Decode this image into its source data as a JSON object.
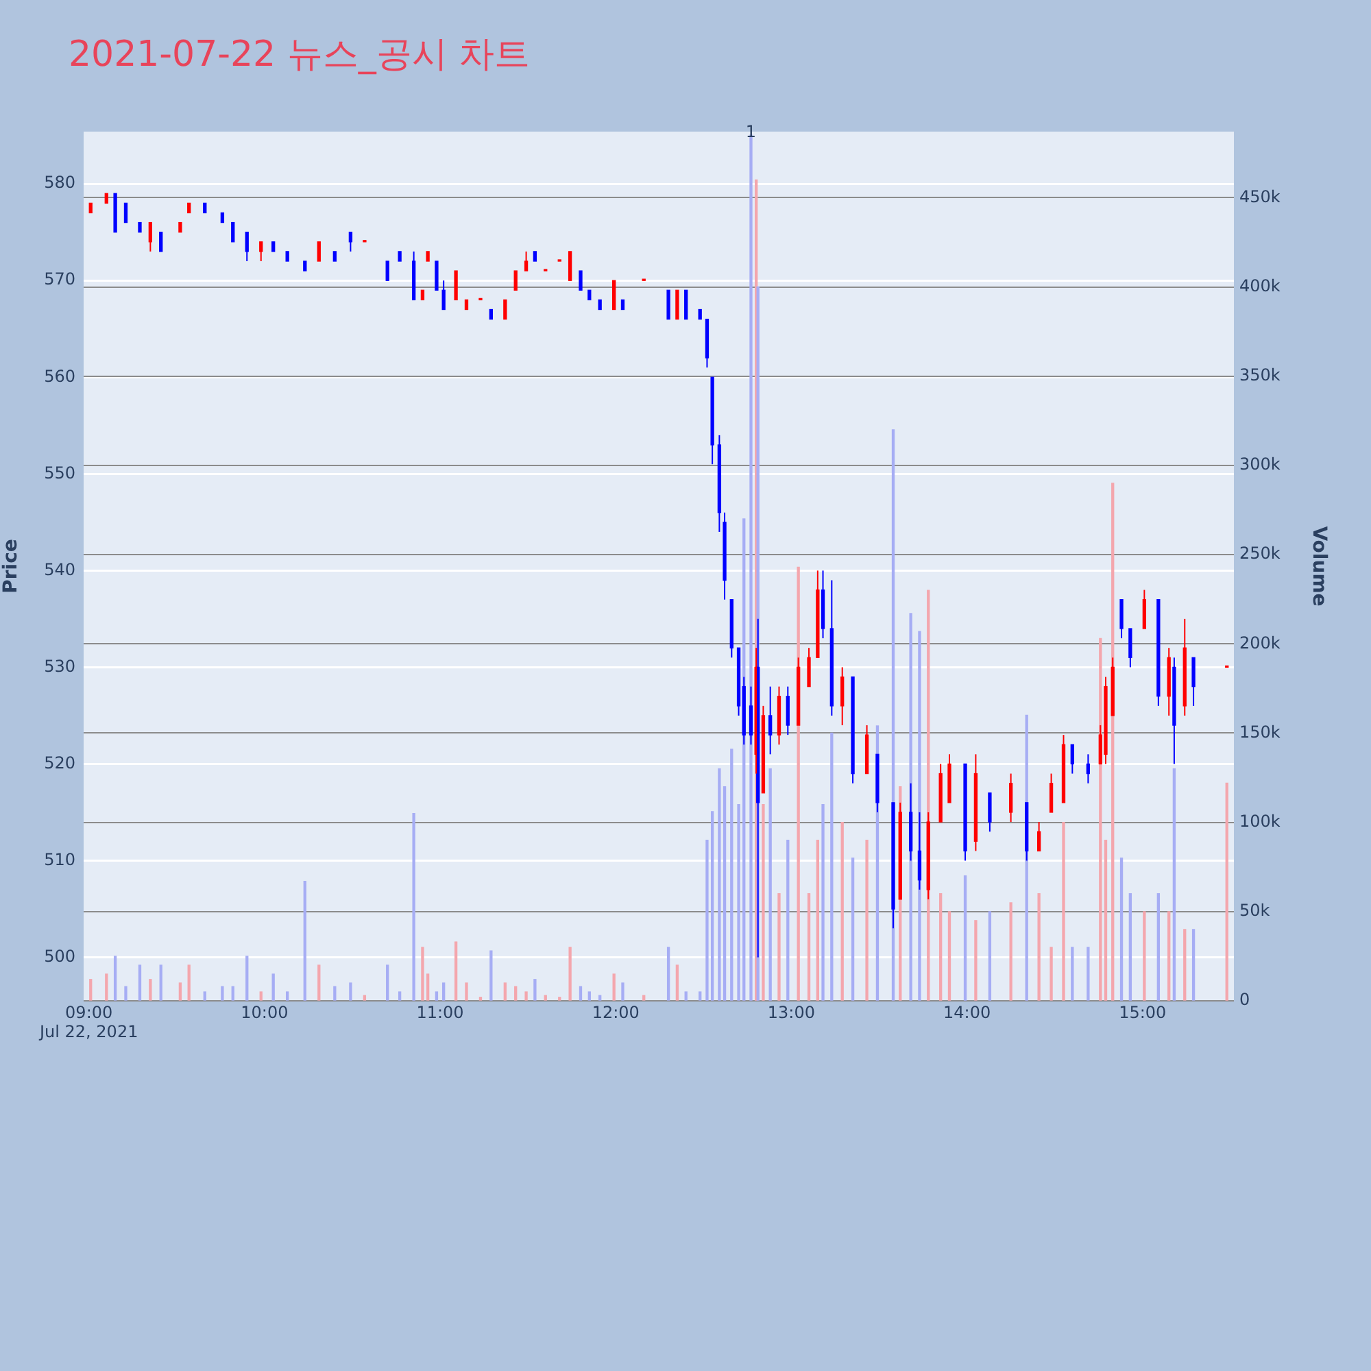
{
  "chart_data": {
    "type": "candlestick",
    "title": "2021-07-22 뉴스_공시 차트",
    "ylabel": "Price",
    "y2label": "Volume",
    "grid": "y",
    "x": [
      9.01,
      9.1,
      9.15,
      9.21,
      9.29,
      9.35,
      9.41,
      9.52,
      9.57,
      9.66,
      9.76,
      9.82,
      9.9,
      9.98,
      10.05,
      10.13,
      10.23,
      10.31,
      10.4,
      10.49,
      10.57,
      10.7,
      10.77,
      10.85,
      10.9,
      10.93,
      10.98,
      11.02,
      11.09,
      11.15,
      11.23,
      11.29,
      11.37,
      11.43,
      11.49,
      11.54,
      11.6,
      11.68,
      11.74,
      11.8,
      11.85,
      11.91,
      11.99,
      12.04,
      12.16,
      12.3,
      12.35,
      12.4,
      12.48,
      12.52,
      12.55,
      12.59,
      12.62,
      12.66,
      12.7,
      12.73,
      12.77,
      12.8,
      12.81,
      12.84,
      12.88,
      12.93,
      12.98,
      13.04,
      13.1,
      13.15,
      13.18,
      13.23,
      13.29,
      13.35,
      13.43,
      13.49,
      13.58,
      13.62,
      13.68,
      13.73,
      13.78,
      13.85,
      13.9,
      13.99,
      14.05,
      14.13,
      14.25,
      14.34,
      14.41,
      14.48,
      14.55,
      14.6,
      14.69,
      14.76,
      14.79,
      14.83,
      14.88,
      14.93,
      15.01,
      15.09,
      15.15,
      15.18,
      15.24,
      15.29,
      15.48
    ],
    "xlim": [
      8.97,
      15.52
    ],
    "xticks": [
      {
        "value": 9,
        "label": "09:00\nJul 22, 2021"
      },
      {
        "value": 10,
        "label": "10:00"
      },
      {
        "value": 11,
        "label": "11:00"
      },
      {
        "value": 12,
        "label": "12:00"
      },
      {
        "value": 13,
        "label": "13:00"
      },
      {
        "value": 14,
        "label": "14:00"
      },
      {
        "value": 15,
        "label": "15:00"
      }
    ],
    "ylim": [
      495.5,
      585.4
    ],
    "yticks": [
      500,
      510,
      520,
      530,
      540,
      550,
      560,
      570,
      580
    ],
    "y2lim": [
      0,
      487000
    ],
    "y2ticks": [
      0,
      {
        "value": 50000,
        "label": "50k"
      },
      {
        "value": 100000,
        "label": "100k"
      },
      {
        "value": 150000,
        "label": "150k"
      },
      {
        "value": 200000,
        "label": "200k"
      },
      {
        "value": 250000,
        "label": "250k"
      },
      {
        "value": 300000,
        "label": "300k"
      },
      {
        "value": 350000,
        "label": "350k"
      },
      {
        "value": 400000,
        "label": "400k"
      },
      {
        "value": 450000,
        "label": "450k"
      }
    ],
    "annotations": [
      {
        "text": "1",
        "x": 12.77
      }
    ],
    "series": [
      {
        "type": "bar",
        "axis": "y2",
        "values": [
          12000,
          15000,
          25000,
          8000,
          20000,
          12000,
          20000,
          10000,
          20000,
          5000,
          8000,
          8000,
          25000,
          5000,
          15000,
          5000,
          67000,
          20000,
          8000,
          10000,
          3000,
          20000,
          5000,
          105000,
          30000,
          15000,
          5000,
          10000,
          33000,
          10000,
          2000,
          28000,
          10000,
          8000,
          5000,
          12000,
          3000,
          2000,
          30000,
          8000,
          5000,
          3000,
          15000,
          10000,
          3000,
          30000,
          20000,
          5000,
          5000,
          90000,
          106000,
          130000,
          120000,
          141000,
          110000,
          270000,
          485000,
          460000,
          400000,
          110000,
          130000,
          60000,
          90000,
          243000,
          60000,
          90000,
          110000,
          150000,
          100000,
          80000,
          90000,
          154000,
          320000,
          120000,
          217000,
          207000,
          230000,
          60000,
          50000,
          70000,
          45000,
          50000,
          55000,
          160000,
          60000,
          30000,
          100000,
          30000,
          30000,
          203000,
          90000,
          290000,
          80000,
          60000,
          50000,
          60000,
          50000,
          130000,
          40000,
          40000,
          122000
        ],
        "colors": [
          "#f4a6ad",
          "#f4a6ad",
          "#a6adf4",
          "#a6adf4",
          "#a6adf4",
          "#f4a6ad",
          "#a6adf4",
          "#f4a6ad",
          "#f4a6ad",
          "#a6adf4",
          "#a6adf4",
          "#a6adf4",
          "#a6adf4",
          "#f4a6ad",
          "#a6adf4",
          "#a6adf4",
          "#a6adf4",
          "#f4a6ad",
          "#a6adf4",
          "#a6adf4",
          "#f4a6ad",
          "#a6adf4",
          "#a6adf4",
          "#a6adf4",
          "#f4a6ad",
          "#f4a6ad",
          "#a6adf4",
          "#a6adf4",
          "#f4a6ad",
          "#f4a6ad",
          "#f4a6ad",
          "#a6adf4",
          "#f4a6ad",
          "#f4a6ad",
          "#f4a6ad",
          "#a6adf4",
          "#f4a6ad",
          "#f4a6ad",
          "#f4a6ad",
          "#a6adf4",
          "#a6adf4",
          "#a6adf4",
          "#f4a6ad",
          "#a6adf4",
          "#f4a6ad",
          "#a6adf4",
          "#f4a6ad",
          "#a6adf4",
          "#a6adf4",
          "#a6adf4",
          "#a6adf4",
          "#a6adf4",
          "#a6adf4",
          "#a6adf4",
          "#a6adf4",
          "#a6adf4",
          "#a6adf4",
          "#f4a6ad",
          "#a6adf4",
          "#f4a6ad",
          "#a6adf4",
          "#f4a6ad",
          "#a6adf4",
          "#f4a6ad",
          "#f4a6ad",
          "#f4a6ad",
          "#a6adf4",
          "#a6adf4",
          "#f4a6ad",
          "#a6adf4",
          "#f4a6ad",
          "#a6adf4",
          "#a6adf4",
          "#f4a6ad",
          "#a6adf4",
          "#a6adf4",
          "#f4a6ad",
          "#f4a6ad",
          "#f4a6ad",
          "#a6adf4",
          "#f4a6ad",
          "#a6adf4",
          "#f4a6ad",
          "#a6adf4",
          "#f4a6ad",
          "#f4a6ad",
          "#f4a6ad",
          "#a6adf4",
          "#a6adf4",
          "#f4a6ad",
          "#f4a6ad",
          "#f4a6ad",
          "#a6adf4",
          "#a6adf4",
          "#f4a6ad",
          "#a6adf4",
          "#f4a6ad",
          "#a6adf4",
          "#f4a6ad",
          "#a6adf4",
          "#f4a6ad"
        ]
      },
      {
        "type": "candlestick",
        "ohlc": [
          [
            577,
            578,
            577,
            578
          ],
          [
            578,
            579,
            578,
            579
          ],
          [
            579,
            579,
            575,
            575
          ],
          [
            578,
            578,
            576,
            576
          ],
          [
            576,
            576,
            575,
            575
          ],
          [
            574,
            576,
            573,
            576
          ],
          [
            575,
            575,
            573,
            573
          ],
          [
            575,
            576,
            575,
            576
          ],
          [
            577,
            578,
            577,
            578
          ],
          [
            578,
            578,
            577,
            577
          ],
          [
            577,
            577,
            576,
            576
          ],
          [
            576,
            576,
            574,
            574
          ],
          [
            575,
            575,
            572,
            573
          ],
          [
            573,
            574,
            572,
            574
          ],
          [
            574,
            574,
            573,
            573
          ],
          [
            573,
            573,
            572,
            572
          ],
          [
            572,
            572,
            571,
            571
          ],
          [
            572,
            574,
            572,
            574
          ],
          [
            573,
            573,
            572,
            572
          ],
          [
            575,
            575,
            573,
            574
          ],
          [
            574,
            574,
            574,
            574
          ],
          [
            572,
            572,
            570,
            570
          ],
          [
            573,
            573,
            572,
            572
          ],
          [
            572,
            573,
            568,
            568
          ],
          [
            568,
            569,
            568,
            569
          ],
          [
            572,
            573,
            572,
            573
          ],
          [
            572,
            572,
            569,
            569
          ],
          [
            569,
            570,
            567,
            567
          ],
          [
            568,
            571,
            568,
            571
          ],
          [
            567,
            568,
            567,
            568
          ],
          [
            568,
            568,
            568,
            568
          ],
          [
            567,
            567,
            566,
            566
          ],
          [
            566,
            568,
            566,
            568
          ],
          [
            569,
            571,
            569,
            571
          ],
          [
            571,
            573,
            571,
            572
          ],
          [
            573,
            573,
            572,
            572
          ],
          [
            571,
            571,
            571,
            571
          ],
          [
            572,
            572,
            572,
            572
          ],
          [
            570,
            573,
            570,
            573
          ],
          [
            571,
            571,
            569,
            569
          ],
          [
            569,
            569,
            568,
            568
          ],
          [
            568,
            568,
            567,
            567
          ],
          [
            567,
            570,
            567,
            570
          ],
          [
            568,
            568,
            567,
            567
          ],
          [
            570,
            570,
            570,
            570
          ],
          [
            569,
            569,
            566,
            566
          ],
          [
            566,
            569,
            566,
            569
          ],
          [
            569,
            569,
            566,
            566
          ],
          [
            567,
            567,
            566,
            566
          ],
          [
            566,
            566,
            561,
            562
          ],
          [
            560,
            560,
            551,
            553
          ],
          [
            553,
            554,
            544,
            546
          ],
          [
            545,
            546,
            537,
            539
          ],
          [
            537,
            537,
            531,
            532
          ],
          [
            532,
            532,
            525,
            526
          ],
          [
            528,
            529,
            522,
            523
          ],
          [
            526,
            528,
            522,
            523
          ],
          [
            521,
            532,
            519,
            530
          ],
          [
            530,
            535,
            500,
            516
          ],
          [
            517,
            526,
            517,
            525
          ],
          [
            525,
            528,
            521,
            523
          ],
          [
            523,
            528,
            522,
            527
          ],
          [
            527,
            528,
            523,
            524
          ],
          [
            524,
            531,
            524,
            530
          ],
          [
            528,
            532,
            528,
            531
          ],
          [
            531,
            540,
            531,
            538
          ],
          [
            538,
            540,
            533,
            534
          ],
          [
            534,
            539,
            525,
            526
          ],
          [
            526,
            530,
            524,
            529
          ],
          [
            529,
            529,
            518,
            519
          ],
          [
            519,
            524,
            519,
            523
          ],
          [
            521,
            521,
            515,
            516
          ],
          [
            516,
            516,
            503,
            505
          ],
          [
            506,
            516,
            506,
            515
          ],
          [
            515,
            518,
            510,
            511
          ],
          [
            511,
            515,
            507,
            508
          ],
          [
            507,
            515,
            506,
            514
          ],
          [
            514,
            520,
            514,
            519
          ],
          [
            516,
            521,
            516,
            520
          ],
          [
            520,
            520,
            510,
            511
          ],
          [
            512,
            521,
            511,
            519
          ],
          [
            517,
            517,
            513,
            514
          ],
          [
            515,
            519,
            514,
            518
          ],
          [
            516,
            516,
            510,
            511
          ],
          [
            511,
            514,
            511,
            513
          ],
          [
            515,
            519,
            515,
            518
          ],
          [
            516,
            523,
            516,
            522
          ],
          [
            522,
            522,
            519,
            520
          ],
          [
            520,
            521,
            518,
            519
          ],
          [
            520,
            524,
            520,
            523
          ],
          [
            521,
            529,
            520,
            528
          ],
          [
            525,
            531,
            525,
            530
          ],
          [
            537,
            537,
            533,
            534
          ],
          [
            534,
            534,
            530,
            531
          ],
          [
            534,
            538,
            534,
            537
          ],
          [
            537,
            537,
            526,
            527
          ],
          [
            527,
            532,
            525,
            531
          ],
          [
            530,
            531,
            520,
            524
          ],
          [
            526,
            535,
            525,
            532
          ],
          [
            531,
            531,
            526,
            528
          ],
          [
            530,
            530,
            530,
            530
          ]
        ],
        "colors": [
          "#ff0000",
          "#ff0000",
          "#0000ff",
          "#0000ff",
          "#0000ff",
          "#ff0000",
          "#0000ff",
          "#ff0000",
          "#ff0000",
          "#0000ff",
          "#0000ff",
          "#0000ff",
          "#0000ff",
          "#ff0000",
          "#0000ff",
          "#0000ff",
          "#0000ff",
          "#ff0000",
          "#0000ff",
          "#0000ff",
          "#ff0000",
          "#0000ff",
          "#0000ff",
          "#0000ff",
          "#ff0000",
          "#ff0000",
          "#0000ff",
          "#0000ff",
          "#ff0000",
          "#ff0000",
          "#ff0000",
          "#0000ff",
          "#ff0000",
          "#ff0000",
          "#ff0000",
          "#0000ff",
          "#ff0000",
          "#ff0000",
          "#ff0000",
          "#0000ff",
          "#0000ff",
          "#0000ff",
          "#ff0000",
          "#0000ff",
          "#ff0000",
          "#0000ff",
          "#ff0000",
          "#0000ff",
          "#0000ff",
          "#0000ff",
          "#0000ff",
          "#0000ff",
          "#0000ff",
          "#0000ff",
          "#0000ff",
          "#0000ff",
          "#0000ff",
          "#ff0000",
          "#0000ff",
          "#ff0000",
          "#0000ff",
          "#ff0000",
          "#0000ff",
          "#ff0000",
          "#ff0000",
          "#ff0000",
          "#0000ff",
          "#0000ff",
          "#ff0000",
          "#0000ff",
          "#ff0000",
          "#0000ff",
          "#0000ff",
          "#ff0000",
          "#0000ff",
          "#0000ff",
          "#ff0000",
          "#ff0000",
          "#ff0000",
          "#0000ff",
          "#ff0000",
          "#0000ff",
          "#ff0000",
          "#0000ff",
          "#ff0000",
          "#ff0000",
          "#ff0000",
          "#0000ff",
          "#0000ff",
          "#ff0000",
          "#ff0000",
          "#ff0000",
          "#0000ff",
          "#0000ff",
          "#ff0000",
          "#0000ff",
          "#ff0000",
          "#0000ff",
          "#ff0000",
          "#0000ff",
          "#ff0000"
        ]
      }
    ]
  }
}
